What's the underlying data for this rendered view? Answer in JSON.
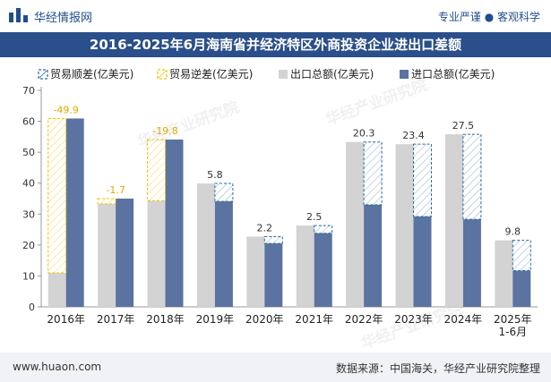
{
  "header": {
    "brand": "华经情报网",
    "slogan": "专业严谨 ● 客观科学",
    "title": "2016-2025年6月海南省并经济特区外商投资企业进出口差额"
  },
  "legend": [
    {
      "label": "贸易顺差(亿美元)",
      "swatch": "surplus"
    },
    {
      "label": "贸易逆差(亿美元)",
      "swatch": "deficit"
    },
    {
      "label": "出口总额(亿美元)",
      "swatch": "export"
    },
    {
      "label": "进口总额(亿美元)",
      "swatch": "import"
    }
  ],
  "footer": {
    "url": "www.huaon.com",
    "source": "数据来源：中国海关，华经产业研究院整理"
  },
  "watermark": "华经产业研究院",
  "colors": {
    "export": "#d3d3d3",
    "import": "#5b73a0",
    "surplus_border": "#2c6aa0",
    "deficit_border": "#f2c200",
    "deficit_label": "#e0a800",
    "title_bg": "#2a4f8a"
  },
  "chart_data": {
    "type": "bar",
    "categories": [
      "2016年",
      "2017年",
      "2018年",
      "2019年",
      "2020年",
      "2021年",
      "2022年",
      "2023年",
      "2024年",
      "2025年\n1-6月"
    ],
    "series": [
      {
        "name": "出口总额(亿美元)",
        "values": [
          11,
          33.3,
          34.3,
          39.9,
          22.7,
          26.3,
          53.3,
          52.6,
          55.8,
          21.5
        ]
      },
      {
        "name": "进口总额(亿美元)",
        "values": [
          60.9,
          35,
          54.1,
          34.1,
          20.5,
          23.8,
          33,
          29.2,
          28.3,
          11.7
        ]
      }
    ],
    "balance": [
      -49.9,
      -1.7,
      -19.8,
      5.8,
      2.2,
      2.5,
      20.3,
      23.4,
      27.5,
      9.8
    ],
    "balance_labels": [
      "-49.9",
      "-1.7",
      "-19.8",
      "5.8",
      "2.2",
      "2.5",
      "20.3",
      "23.4",
      "27.5",
      "9.8"
    ],
    "ylim": [
      0,
      70
    ],
    "yticks": [
      0,
      10,
      20,
      30,
      40,
      50,
      60,
      70
    ],
    "grid": false,
    "legend_position": "top"
  }
}
